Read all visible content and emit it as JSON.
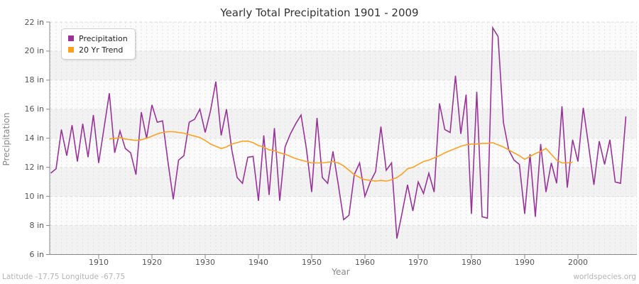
{
  "title": "Yearly Total Precipitation 1901 - 2009",
  "footer": {
    "left": "Latitude -17.75 Longitude -67.75",
    "right": "worldspecies.org"
  },
  "axes": {
    "x_label": "Year",
    "y_label": "Precipitation",
    "y_tick_labels": [
      "22 in",
      "20 in",
      "18 in",
      "16 in",
      "14 in",
      "12 in",
      "10 in",
      "8 in",
      "6 in"
    ],
    "y_tick_values": [
      22,
      20,
      18,
      16,
      14,
      12,
      10,
      8,
      6
    ],
    "x_tick_values": [
      1910,
      1920,
      1930,
      1940,
      1950,
      1960,
      1970,
      1980,
      1990,
      2000
    ]
  },
  "legend": {
    "items": [
      {
        "label": "Precipitation",
        "color": "#993399"
      },
      {
        "label": "20 Yr Trend",
        "color": "#FFA020"
      }
    ]
  },
  "colors": {
    "precipitation": "#993399",
    "trend": "#FFA020",
    "band_dark": "#f2f2f2",
    "band_light": "#fbfbfb",
    "grid_v": "#e2e2e2",
    "grid_h": "#dedede",
    "axis": "#888888"
  },
  "chart_data": {
    "type": "line",
    "title": "Yearly Total Precipitation 1901 - 2009",
    "xlabel": "Year",
    "ylabel": "Precipitation",
    "y_unit": "in",
    "x_range": [
      1901,
      2009
    ],
    "ylim": [
      6,
      22
    ],
    "grid": true,
    "legend_position": "top-left",
    "series": [
      {
        "name": "Precipitation",
        "color": "#993399",
        "x_start": 1901,
        "values": [
          11.6,
          11.9,
          14.6,
          12.8,
          14.9,
          12.4,
          15.0,
          12.7,
          15.6,
          12.3,
          14.7,
          17.1,
          13.0,
          14.5,
          13.3,
          13.0,
          11.5,
          15.8,
          14.0,
          16.3,
          15.1,
          15.2,
          12.4,
          9.8,
          12.5,
          12.8,
          15.1,
          15.3,
          16.0,
          14.4,
          15.9,
          17.9,
          14.2,
          16.0,
          13.2,
          11.3,
          10.9,
          12.7,
          12.75,
          9.7,
          14.2,
          10.1,
          14.7,
          9.7,
          13.4,
          14.3,
          15.0,
          15.6,
          13.3,
          10.3,
          15.4,
          11.3,
          10.9,
          13.1,
          10.8,
          8.4,
          8.7,
          11.5,
          12.3,
          10.0,
          11.0,
          11.7,
          14.8,
          11.8,
          12.3,
          7.1,
          8.9,
          10.8,
          9.0,
          11.0,
          10.2,
          11.6,
          10.3,
          16.4,
          14.6,
          14.4,
          18.3,
          14.3,
          17.0,
          8.8,
          17.2,
          8.6,
          8.5,
          21.6,
          21.0,
          15.1,
          13.2,
          12.5,
          12.2,
          8.8,
          12.9,
          8.6,
          13.6,
          10.3,
          12.3,
          10.9,
          16.2,
          10.6,
          13.9,
          12.4,
          16.1,
          13.5,
          10.8,
          13.8,
          12.2,
          13.9,
          11.0,
          10.9,
          15.5
        ]
      },
      {
        "name": "20 Yr Trend",
        "color": "#FFA020",
        "x_start": 1912,
        "values": [
          13.95,
          14.0,
          14.05,
          13.95,
          13.9,
          13.85,
          13.9,
          14.0,
          14.15,
          14.3,
          14.4,
          14.45,
          14.45,
          14.4,
          14.35,
          14.25,
          14.15,
          14.05,
          13.85,
          13.6,
          13.45,
          13.3,
          13.4,
          13.6,
          13.7,
          13.8,
          13.8,
          13.7,
          13.5,
          13.4,
          13.2,
          13.15,
          13.0,
          12.9,
          12.75,
          12.6,
          12.5,
          12.4,
          12.3,
          12.3,
          12.3,
          12.35,
          12.4,
          12.3,
          12.1,
          11.8,
          11.5,
          11.3,
          11.15,
          11.1,
          11.05,
          11.1,
          11.05,
          11.15,
          11.3,
          11.55,
          11.9,
          12.0,
          12.2,
          12.4,
          12.5,
          12.65,
          12.8,
          13.0,
          13.15,
          13.3,
          13.45,
          13.55,
          13.6,
          13.6,
          13.65,
          13.65,
          13.7,
          13.55,
          13.4,
          13.2,
          13.0,
          12.8,
          12.55,
          12.75,
          12.95,
          13.1,
          13.3,
          12.9,
          12.5,
          12.3,
          12.3,
          12.35
        ]
      }
    ]
  }
}
